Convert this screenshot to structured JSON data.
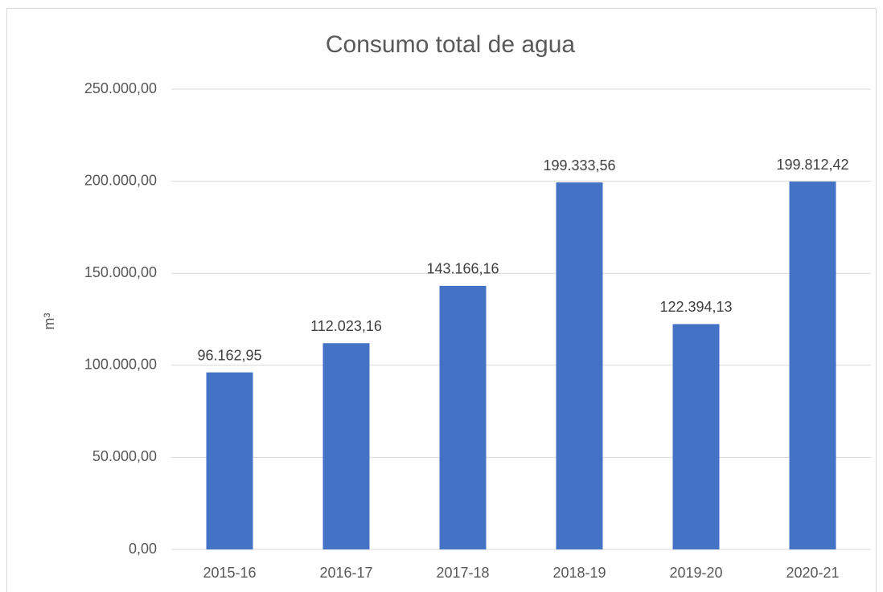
{
  "chart_data": {
    "type": "bar",
    "title": "Consumo total de agua",
    "y_label": "m³",
    "categories": [
      "2015-16",
      "2016-17",
      "2017-18",
      "2018-19",
      "2019-20",
      "2020-21"
    ],
    "values": [
      96162.95,
      112023.16,
      143166.16,
      199333.56,
      122394.13,
      199812.42
    ],
    "value_labels": [
      "96.162,95",
      "112.023,16",
      "143.166,16",
      "199.333,56",
      "122.394,13",
      "199.812,42"
    ],
    "color": "#4472c4",
    "ylim": [
      0,
      250000
    ],
    "yticks": [
      {
        "value": 0,
        "label": "0,00"
      },
      {
        "value": 50000,
        "label": "50.000,00"
      },
      {
        "value": 100000,
        "label": "100.000,00"
      },
      {
        "value": 150000,
        "label": "150.000,00"
      },
      {
        "value": 200000,
        "label": "200.000,00"
      },
      {
        "value": 250000,
        "label": "250.000,00"
      }
    ],
    "grid": true
  }
}
